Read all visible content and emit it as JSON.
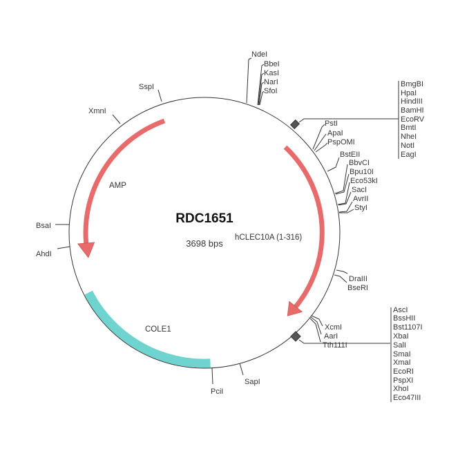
{
  "plasmid": {
    "name": "RDC1651",
    "length": "3698 bps"
  },
  "colors": {
    "amp_arrow": "#e86b6b",
    "insert_arrow": "#e86b6b",
    "cole1": "#6fd4d0",
    "backbone": "#333333"
  },
  "features": [
    {
      "label": "AMP",
      "type": "arrow",
      "direction": "counterclockwise"
    },
    {
      "label": "hCLEC10A (1-316)",
      "type": "arrow",
      "direction": "clockwise"
    },
    {
      "label": "COLE1",
      "type": "origin"
    }
  ],
  "sites": {
    "ndei": "NdeI",
    "top_group": [
      "BbeI",
      "KasI",
      "NarI",
      "SfoI"
    ],
    "mcs1": [
      "BmgBI",
      "HpaI",
      "HindIII",
      "BamHI",
      "EcoRV",
      "BmtI",
      "NheI",
      "NotI",
      "EagI"
    ],
    "psti_group": [
      "PstI",
      "ApaI",
      "PspOMI"
    ],
    "bsteii": "BstEII",
    "bbvci_group": [
      "BbvCI",
      "Bpu10I",
      "Eco53kI",
      "SacI",
      "AvrII",
      "StyI"
    ],
    "draiii_group": [
      "DraIII",
      "BseRI"
    ],
    "xcmi_group": [
      "XcmI",
      "AarI",
      "Tth111I"
    ],
    "mcs2": [
      "AscI",
      "BssHII",
      "Bst1107I",
      "XbaI",
      "SalI",
      "SmaI",
      "XmaI",
      "EcoRI",
      "PspXI",
      "XhoI",
      "Eco47III"
    ],
    "sapi": "SapI",
    "pcii": "PciI",
    "ahdi": "AhdI",
    "bsai": "BsaI",
    "xmni": "XmnI",
    "sspi": "SspI"
  }
}
